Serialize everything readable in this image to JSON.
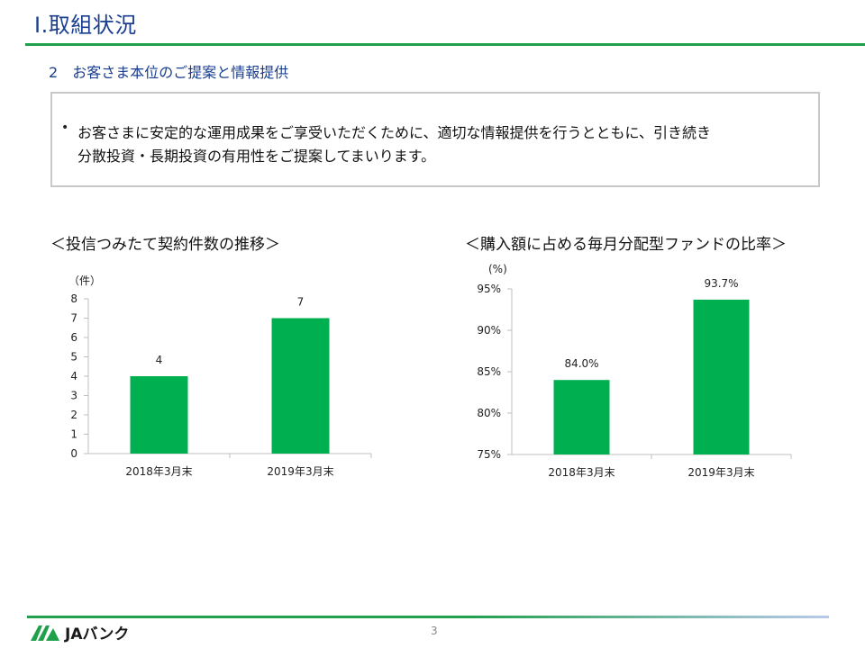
{
  "header": {
    "title": "Ⅰ.取組状況"
  },
  "section": {
    "number": "2",
    "title": "お客さま本位のご提案と情報提供"
  },
  "summary": {
    "bullet": "•",
    "line1": "お客さまに安定的な運用成果をご享受いただくために、適切な情報提供を行うとともに、引き続き",
    "line2": "分散投資・長期投資の有用性をご提案してまいります。"
  },
  "chart_data": [
    {
      "type": "bar",
      "title": "＜投信つみたて契約件数の推移＞",
      "unit_label": "（件）",
      "categories": [
        "2018年3月末",
        "2019年3月末"
      ],
      "values": [
        4,
        7
      ],
      "data_labels": [
        "4",
        "7"
      ],
      "ylim": [
        0,
        8
      ],
      "yticks": [
        "0",
        "1",
        "2",
        "3",
        "4",
        "5",
        "6",
        "7",
        "8"
      ],
      "grid": false,
      "color": "#00b050"
    },
    {
      "type": "bar",
      "title": "＜購入額に占める毎月分配型ファンドの比率＞",
      "unit_label": "(%)",
      "categories": [
        "2018年3月末",
        "2019年3月末"
      ],
      "values": [
        84.0,
        93.7
      ],
      "data_labels": [
        "84.0%",
        "93.7%"
      ],
      "ylim": [
        75,
        95
      ],
      "yticks": [
        "75%",
        "80%",
        "85%",
        "90%",
        "95%"
      ],
      "grid": false,
      "color": "#00b050"
    }
  ],
  "footer": {
    "page_number": "3",
    "brand": "JAバンク",
    "brand_icon": "ja-logo-icon",
    "rule_color": "#1fa04a"
  }
}
